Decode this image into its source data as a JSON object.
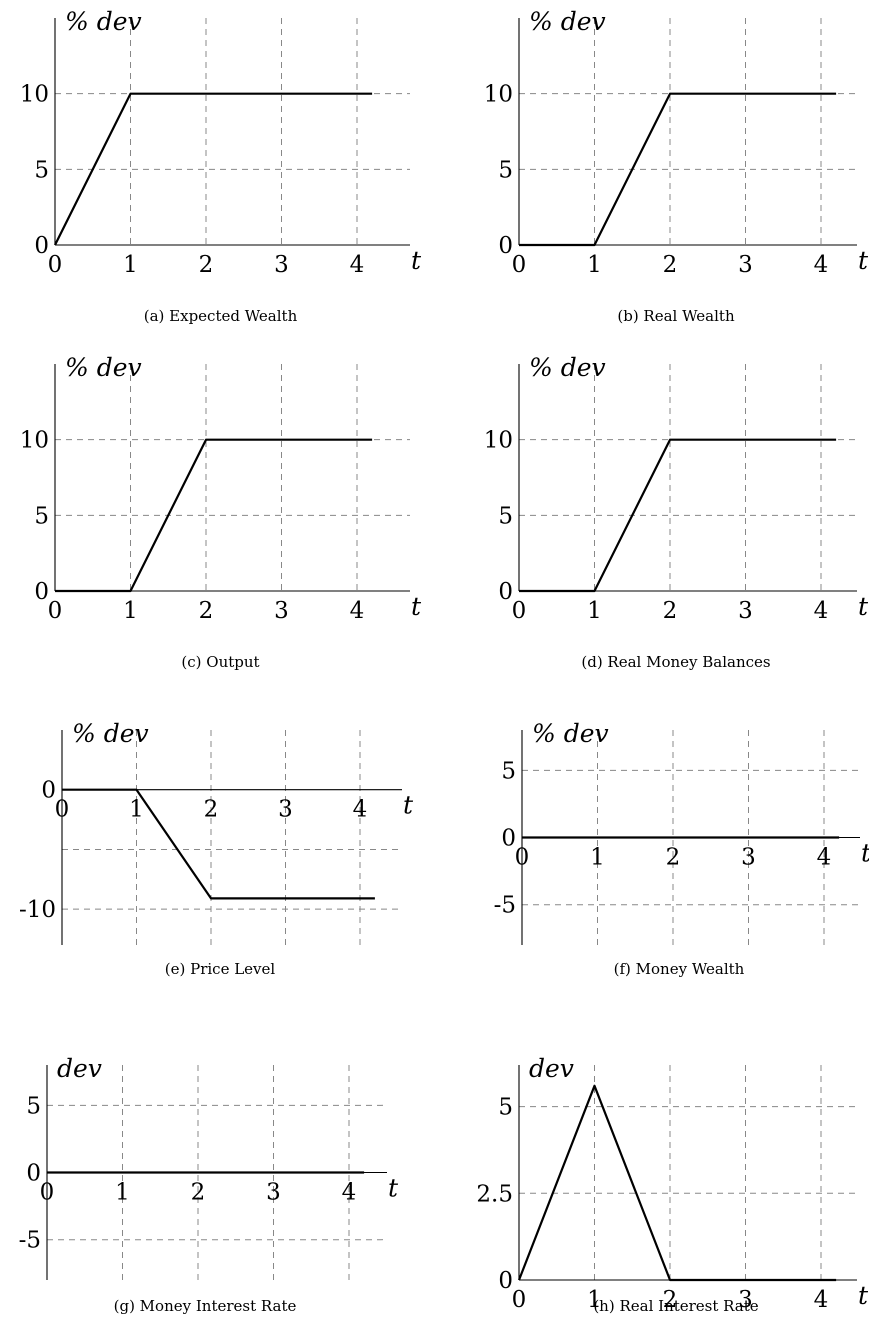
{
  "chart_data": [
    {
      "type": "line",
      "panel": "a",
      "caption": "(a)  Expected Wealth",
      "ylabel": "% dev",
      "xlabel": "t",
      "x_ticks": [
        "0",
        "1",
        "2",
        "3",
        "4"
      ],
      "y_ticks": [
        {
          "value": 0,
          "label": "0"
        },
        {
          "value": 5,
          "label": "5"
        },
        {
          "value": 10,
          "label": "10"
        }
      ],
      "xlim": [
        0,
        4.2
      ],
      "ylim": [
        0,
        15
      ],
      "grid_x": [
        1,
        2,
        3,
        4
      ],
      "grid_y": [
        5,
        10
      ],
      "x": [
        0,
        1,
        4.2
      ],
      "y": [
        0,
        10,
        10
      ]
    },
    {
      "type": "line",
      "panel": "b",
      "caption": "(b)  Real Wealth",
      "ylabel": "% dev",
      "xlabel": "t",
      "x_ticks": [
        "0",
        "1",
        "2",
        "3",
        "4"
      ],
      "y_ticks": [
        {
          "value": 0,
          "label": "0"
        },
        {
          "value": 5,
          "label": "5"
        },
        {
          "value": 10,
          "label": "10"
        }
      ],
      "xlim": [
        0,
        4.2
      ],
      "ylim": [
        0,
        15
      ],
      "grid_x": [
        1,
        2,
        3,
        4
      ],
      "grid_y": [
        5,
        10
      ],
      "x": [
        0,
        1,
        2,
        4.2
      ],
      "y": [
        0,
        0,
        10,
        10
      ]
    },
    {
      "type": "line",
      "panel": "c",
      "caption": "(c)  Output",
      "ylabel": "% dev",
      "xlabel": "t",
      "x_ticks": [
        "0",
        "1",
        "2",
        "3",
        "4"
      ],
      "y_ticks": [
        {
          "value": 0,
          "label": "0"
        },
        {
          "value": 5,
          "label": "5"
        },
        {
          "value": 10,
          "label": "10"
        }
      ],
      "xlim": [
        0,
        4.2
      ],
      "ylim": [
        0,
        15
      ],
      "grid_x": [
        1,
        2,
        3,
        4
      ],
      "grid_y": [
        5,
        10
      ],
      "x": [
        0,
        1,
        2,
        4.2
      ],
      "y": [
        0,
        0,
        10,
        10
      ]
    },
    {
      "type": "line",
      "panel": "d",
      "caption": "(d)  Real Money Balances",
      "ylabel": "% dev",
      "xlabel": "t",
      "x_ticks": [
        "0",
        "1",
        "2",
        "3",
        "4"
      ],
      "y_ticks": [
        {
          "value": 0,
          "label": "0"
        },
        {
          "value": 5,
          "label": "5"
        },
        {
          "value": 10,
          "label": "10"
        }
      ],
      "xlim": [
        0,
        4.2
      ],
      "ylim": [
        0,
        15
      ],
      "grid_x": [
        1,
        2,
        3,
        4
      ],
      "grid_y": [
        5,
        10
      ],
      "x": [
        0,
        1,
        2,
        4.2
      ],
      "y": [
        0,
        0,
        10,
        10
      ]
    },
    {
      "type": "line",
      "panel": "e",
      "caption": "(e)  Price Level",
      "ylabel": "% dev",
      "xlabel": "t",
      "x_ticks": [
        "0",
        "1",
        "2",
        "3",
        "4"
      ],
      "y_ticks": [
        {
          "value": 0,
          "label": "0"
        },
        {
          "value": -10,
          "label": "-10"
        }
      ],
      "xlim": [
        0,
        4.2
      ],
      "ylim": [
        -13,
        5
      ],
      "grid_x": [
        1,
        2,
        3,
        4
      ],
      "grid_y": [
        -5,
        -10
      ],
      "x": [
        0,
        1,
        2,
        4.2
      ],
      "y": [
        0,
        0,
        -9.1,
        -9.1
      ]
    },
    {
      "type": "line",
      "panel": "f",
      "caption": "(f)  Money Wealth",
      "ylabel": "% dev",
      "xlabel": "t",
      "x_ticks": [
        "0",
        "1",
        "2",
        "3",
        "4"
      ],
      "y_ticks": [
        {
          "value": 5,
          "label": "5"
        },
        {
          "value": 0,
          "label": "0"
        },
        {
          "value": -5,
          "label": "-5"
        }
      ],
      "xlim": [
        0,
        4.2
      ],
      "ylim": [
        -8,
        8
      ],
      "grid_x": [
        1,
        2,
        3,
        4
      ],
      "grid_y": [
        5,
        -5
      ],
      "x": [
        0,
        4.2
      ],
      "y": [
        0,
        0
      ]
    },
    {
      "type": "line",
      "panel": "g",
      "caption": "(g)  Money Interest Rate",
      "ylabel": "dev",
      "xlabel": "t",
      "x_ticks": [
        "0",
        "1",
        "2",
        "3",
        "4"
      ],
      "y_ticks": [
        {
          "value": 5,
          "label": "5"
        },
        {
          "value": 0,
          "label": "0"
        },
        {
          "value": -5,
          "label": "-5"
        }
      ],
      "xlim": [
        0,
        4.2
      ],
      "ylim": [
        -8,
        8
      ],
      "grid_x": [
        1,
        2,
        3,
        4
      ],
      "grid_y": [
        5,
        -5
      ],
      "x": [
        0,
        4.2
      ],
      "y": [
        0,
        0
      ]
    },
    {
      "type": "line",
      "panel": "h",
      "caption": "(h)  Real Interest Rate",
      "ylabel": "dev",
      "xlabel": "t",
      "x_ticks": [
        "0",
        "1",
        "2",
        "3",
        "4"
      ],
      "y_ticks": [
        {
          "value": 0,
          "label": "0"
        },
        {
          "value": 2.5,
          "label": "2.5"
        },
        {
          "value": 5,
          "label": "5"
        }
      ],
      "xlim": [
        0,
        4.2
      ],
      "ylim": [
        0,
        6.2
      ],
      "grid_x": [
        1,
        2,
        3,
        4
      ],
      "grid_y": [
        2.5,
        5
      ],
      "x": [
        0,
        1,
        2,
        4.2
      ],
      "y": [
        0,
        5.6,
        0,
        0
      ]
    }
  ]
}
